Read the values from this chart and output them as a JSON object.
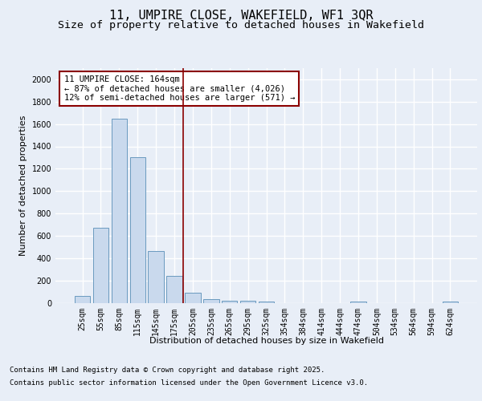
{
  "title": "11, UMPIRE CLOSE, WAKEFIELD, WF1 3QR",
  "subtitle": "Size of property relative to detached houses in Wakefield",
  "xlabel": "Distribution of detached houses by size in Wakefield",
  "ylabel": "Number of detached properties",
  "footer_line1": "Contains HM Land Registry data © Crown copyright and database right 2025.",
  "footer_line2": "Contains public sector information licensed under the Open Government Licence v3.0.",
  "annotation_title": "11 UMPIRE CLOSE: 164sqm",
  "annotation_line1": "← 87% of detached houses are smaller (4,026)",
  "annotation_line2": "12% of semi-detached houses are larger (571) →",
  "categories": [
    "25sqm",
    "55sqm",
    "85sqm",
    "115sqm",
    "145sqm",
    "175sqm",
    "205sqm",
    "235sqm",
    "265sqm",
    "295sqm",
    "325sqm",
    "354sqm",
    "384sqm",
    "414sqm",
    "444sqm",
    "474sqm",
    "504sqm",
    "534sqm",
    "564sqm",
    "594sqm",
    "624sqm"
  ],
  "values": [
    60,
    670,
    1650,
    1300,
    460,
    240,
    90,
    35,
    20,
    15,
    12,
    0,
    0,
    0,
    0,
    10,
    0,
    0,
    0,
    0,
    10
  ],
  "bar_color": "#c9d9ed",
  "bar_edge_color": "#6a9abf",
  "vline_color": "#8b0000",
  "vline_position": 5.5,
  "annotation_box_color": "#ffffff",
  "annotation_box_edge_color": "#8b0000",
  "ylim": [
    0,
    2100
  ],
  "yticks": [
    0,
    200,
    400,
    600,
    800,
    1000,
    1200,
    1400,
    1600,
    1800,
    2000
  ],
  "bg_color": "#e8eef7",
  "plot_bg_color": "#e8eef7",
  "grid_color": "#ffffff",
  "title_fontsize": 11,
  "subtitle_fontsize": 9.5,
  "label_fontsize": 8,
  "tick_fontsize": 7,
  "annotation_fontsize": 7.5,
  "footer_fontsize": 6.5
}
